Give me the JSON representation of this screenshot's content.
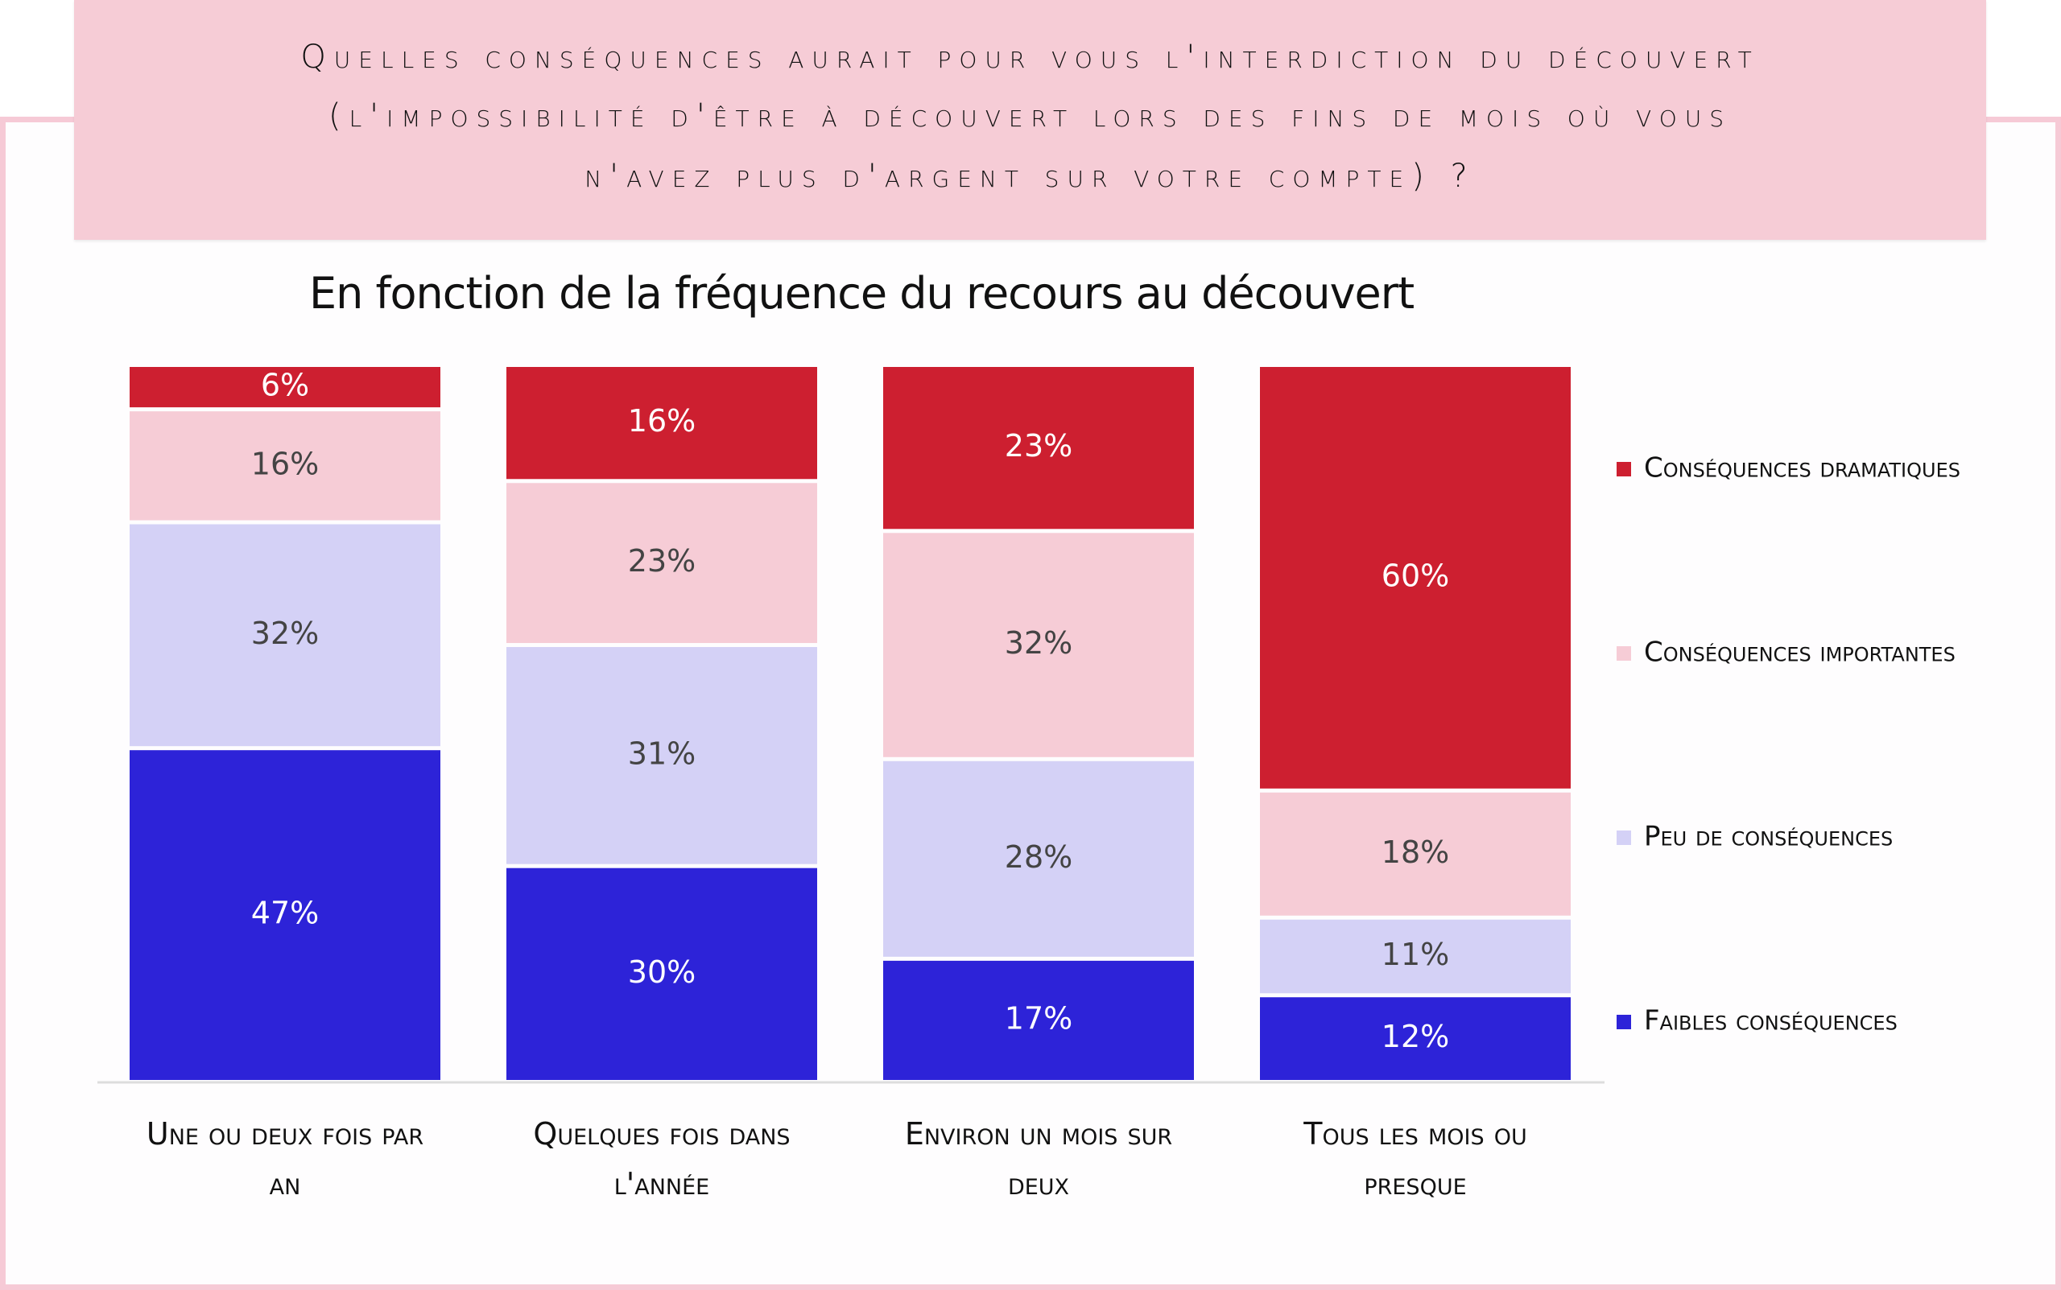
{
  "header": {
    "lines": [
      "Quelles conséquences aurait pour vous l'interdiction du découvert",
      "(l'impossibilité d'être à découvert lors des fins de mois où vous",
      "n'avez plus d'argent sur votre compte) ?"
    ]
  },
  "colors": {
    "header_bg": "#F6CCD6",
    "frame": "#F6CAD6",
    "dramatiques": "#CD1F30",
    "importantes": "#F6CCD6",
    "peu": "#D4D1F6",
    "faibles": "#2D23D8",
    "axis": "#DDDDDD"
  },
  "chart_data": {
    "type": "bar",
    "stacked": true,
    "title": "Quelles conséquences aurait pour vous l'interdiction du découvert (l'impossibilité d'être à découvert lors des fins de mois où vous n'avez plus d'argent sur votre compte) ?",
    "subtitle": "En fonction de la fréquence du recours au découvert",
    "xlabel": "",
    "ylabel": "",
    "ylim": [
      0,
      100
    ],
    "unit": "%",
    "categories": [
      [
        "Une ou deux fois par",
        "an"
      ],
      [
        "Quelques fois dans",
        "l'année"
      ],
      [
        "Environ un mois sur",
        "deux"
      ],
      [
        "Tous les mois ou",
        "presque"
      ]
    ],
    "series": [
      {
        "name": "Faibles conséquences",
        "key": "faibles",
        "values": [
          47,
          30,
          17,
          12
        ],
        "label_color": "#FFFFFF"
      },
      {
        "name": "Peu de conséquences",
        "key": "peu",
        "values": [
          32,
          31,
          28,
          11
        ],
        "label_color": "#444444"
      },
      {
        "name": "Conséquences importantes",
        "key": "importantes",
        "values": [
          16,
          23,
          32,
          18
        ],
        "label_color": "#444444"
      },
      {
        "name": "Conséquences dramatiques",
        "key": "dramatiques",
        "values": [
          6,
          16,
          23,
          60
        ],
        "label_color": "#FFFFFF"
      }
    ],
    "legend": {
      "position": "right",
      "order": [
        "Conséquences dramatiques",
        "Conséquences importantes",
        "Peu de conséquences",
        "Faibles conséquences"
      ]
    },
    "grid": false
  }
}
